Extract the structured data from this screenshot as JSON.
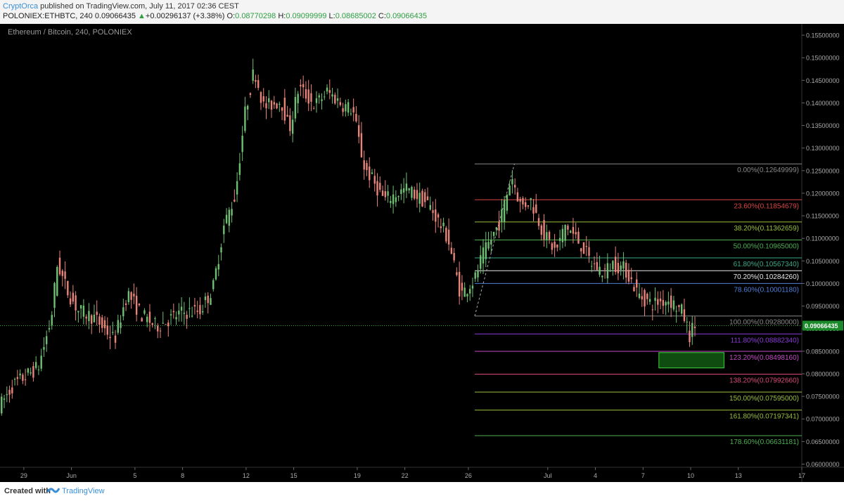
{
  "header": {
    "author": "CryptOrca",
    "published": " published on TradingView.com, July 11, 2017 02:36 CEST",
    "symbol": "POLONIEX:ETHBTC, 240",
    "last": "0.09066435",
    "arrow": "▲",
    "change": "+0.00296137 (+3.38%)",
    "o_label": "O:",
    "o": "0.08770298",
    "h_label": "H:",
    "h": "0.09099999",
    "l_label": "L:",
    "l": "0.08685002",
    "c_label": "C:",
    "c": "0.09066435"
  },
  "footer": {
    "created": "Created with",
    "brand": "TradingView",
    "brand_icon": "tradingview-logo-icon"
  },
  "colors": {
    "up": "#6fbf73",
    "down": "#e8847a",
    "background": "#000000",
    "axis_text": "#aaaaaa",
    "price_marker": "#1a8a2a"
  },
  "chart_data": {
    "type": "candlestick",
    "title": "Ethereum / Bitcoin, 240, POLONIEX",
    "x_tick_labels": [
      {
        "label": "29",
        "x": 0.0
      },
      {
        "label": "Jun",
        "x": 3.0
      },
      {
        "label": "5",
        "x": 7.0
      },
      {
        "label": "8",
        "x": 10.0
      },
      {
        "label": "12",
        "x": 14.0
      },
      {
        "label": "15",
        "x": 17.0
      },
      {
        "label": "19",
        "x": 21.0
      },
      {
        "label": "22",
        "x": 24.0
      },
      {
        "label": "26",
        "x": 28.0
      },
      {
        "label": "Jul",
        "x": 33.0
      },
      {
        "label": "4",
        "x": 36.0
      },
      {
        "label": "7",
        "x": 39.0
      },
      {
        "label": "10",
        "x": 42.0
      },
      {
        "label": "13",
        "x": 45.0
      },
      {
        "label": "17",
        "x": 49.0
      }
    ],
    "y_ticks": [
      "0.06000000",
      "0.06500000",
      "0.07000000",
      "0.07500000",
      "0.08000000",
      "0.08500000",
      "0.09000000",
      "0.09500000",
      "0.10000000",
      "0.10500000",
      "0.11000000",
      "0.11500000",
      "0.12000000",
      "0.12500000",
      "0.13000000",
      "0.13500000",
      "0.14000000",
      "0.14500000",
      "0.15000000",
      "0.15500000"
    ],
    "y_range": [
      0.0593,
      0.1575
    ],
    "x_range": [
      -1.5,
      49.0
    ],
    "last_price": 0.09066435,
    "last_price_label": "0.09066435",
    "anchors": [
      {
        "x": -1.4,
        "price": 0.073
      },
      {
        "x": -0.6,
        "price": 0.0775
      },
      {
        "x": 0.0,
        "price": 0.079
      },
      {
        "x": 1.0,
        "price": 0.0815
      },
      {
        "x": 1.8,
        "price": 0.092
      },
      {
        "x": 2.2,
        "price": 0.1045
      },
      {
        "x": 2.8,
        "price": 0.0985
      },
      {
        "x": 3.5,
        "price": 0.094
      },
      {
        "x": 4.5,
        "price": 0.0925
      },
      {
        "x": 5.8,
        "price": 0.0875
      },
      {
        "x": 6.6,
        "price": 0.098
      },
      {
        "x": 7.5,
        "price": 0.093
      },
      {
        "x": 8.4,
        "price": 0.0905
      },
      {
        "x": 10.0,
        "price": 0.0935
      },
      {
        "x": 11.2,
        "price": 0.094
      },
      {
        "x": 12.0,
        "price": 0.099
      },
      {
        "x": 12.7,
        "price": 0.113
      },
      {
        "x": 13.4,
        "price": 0.1195
      },
      {
        "x": 14.0,
        "price": 0.1375
      },
      {
        "x": 14.6,
        "price": 0.1475
      },
      {
        "x": 15.2,
        "price": 0.139
      },
      {
        "x": 16.3,
        "price": 0.1405
      },
      {
        "x": 16.8,
        "price": 0.134
      },
      {
        "x": 17.4,
        "price": 0.1435
      },
      {
        "x": 18.4,
        "price": 0.1395
      },
      {
        "x": 19.2,
        "price": 0.1425
      },
      {
        "x": 20.2,
        "price": 0.1395
      },
      {
        "x": 20.8,
        "price": 0.1385
      },
      {
        "x": 21.5,
        "price": 0.126
      },
      {
        "x": 22.8,
        "price": 0.1185
      },
      {
        "x": 24.2,
        "price": 0.121
      },
      {
        "x": 25.6,
        "price": 0.1175
      },
      {
        "x": 26.8,
        "price": 0.11
      },
      {
        "x": 27.6,
        "price": 0.0975
      },
      {
        "x": 28.5,
        "price": 0.101
      },
      {
        "x": 28.9,
        "price": 0.1055
      },
      {
        "x": 30.1,
        "price": 0.114
      },
      {
        "x": 30.8,
        "price": 0.124
      },
      {
        "x": 31.4,
        "price": 0.117
      },
      {
        "x": 32.0,
        "price": 0.1185
      },
      {
        "x": 32.9,
        "price": 0.1105
      },
      {
        "x": 33.6,
        "price": 0.107
      },
      {
        "x": 34.2,
        "price": 0.113
      },
      {
        "x": 35.3,
        "price": 0.108
      },
      {
        "x": 35.8,
        "price": 0.1045
      },
      {
        "x": 36.6,
        "price": 0.1025
      },
      {
        "x": 37.2,
        "price": 0.1045
      },
      {
        "x": 38.0,
        "price": 0.103
      },
      {
        "x": 38.8,
        "price": 0.0975
      },
      {
        "x": 39.6,
        "price": 0.0955
      },
      {
        "x": 40.7,
        "price": 0.0965
      },
      {
        "x": 41.6,
        "price": 0.0935
      },
      {
        "x": 42.0,
        "price": 0.0885
      },
      {
        "x": 42.3,
        "price": 0.0907
      }
    ],
    "fib_levels": [
      {
        "label": "0.00%(0.12649999)",
        "price": 0.12649999,
        "color": "#888888"
      },
      {
        "label": "23.60%(0.11854679)",
        "price": 0.11854679,
        "color": "#d94545"
      },
      {
        "label": "38.20%(0.11362659)",
        "price": 0.11362659,
        "color": "#9bbf3a"
      },
      {
        "label": "50.00%(0.10965000)",
        "price": 0.10965,
        "color": "#4caf50"
      },
      {
        "label": "61.80%(0.10567340)",
        "price": 0.1056734,
        "color": "#3aaa8a"
      },
      {
        "label": "70.20%(0.10284260)",
        "price": 0.1028426,
        "color": "#e8e8e8"
      },
      {
        "label": "78.60%(0.10001180)",
        "price": 0.1000118,
        "color": "#4f7fd8"
      },
      {
        "label": "100.00%(0.09280000)",
        "price": 0.0928,
        "color": "#888888"
      },
      {
        "label": "111.80%(0.08882340)",
        "price": 0.0888234,
        "color": "#8a3ad8"
      },
      {
        "label": "123.20%(0.08498160)",
        "price": 0.0849816,
        "color": "#c64ac6"
      },
      {
        "label": "138.20%(0.07992660)",
        "price": 0.0799266,
        "color": "#d94a78"
      },
      {
        "label": "150.00%(0.07595000)",
        "price": 0.07595,
        "color": "#9bbf3a"
      },
      {
        "label": "161.80%(0.07197341)",
        "price": 0.07197341,
        "color": "#9bbf3a"
      },
      {
        "label": "178.60%(0.06631181)",
        "price": 0.06631181,
        "color": "#4caf50"
      }
    ],
    "fib_x_start": 28.4,
    "fib_swing": {
      "from": {
        "x": 28.4,
        "price": 0.0928
      },
      "to": {
        "x": 30.9,
        "price": 0.1265
      }
    },
    "target_zone": {
      "x_from": 40.0,
      "x_to": 44.1,
      "price_high": 0.0847,
      "price_low": 0.0813,
      "color": "#1c8a1c"
    }
  }
}
